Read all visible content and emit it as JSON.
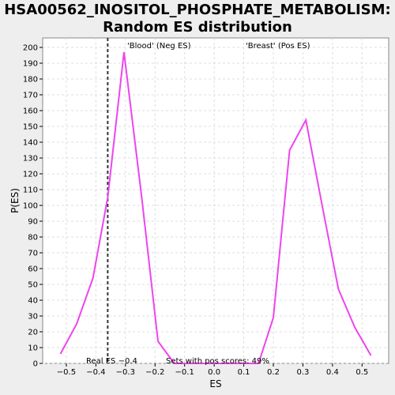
{
  "chart_data": {
    "type": "line",
    "title_line1": "HSA00562_INOSITOL_PHOSPHATE_METABOLISM:",
    "title_line2": "Random ES distribution",
    "xlabel": "ES",
    "ylabel": "P(ES)",
    "xlim": [
      -0.58,
      0.59
    ],
    "ylim": [
      0,
      206
    ],
    "xticks": [
      -0.5,
      -0.4,
      -0.3,
      -0.2,
      -0.1,
      0.0,
      0.1,
      0.2,
      0.3,
      0.4,
      0.5
    ],
    "xtick_labels": [
      "−0.5",
      "−0.4",
      "−0.3",
      "−0.2",
      "−0.1",
      "0.0",
      "0.1",
      "0.2",
      "0.3",
      "0.4",
      "0.5"
    ],
    "yticks": [
      0,
      10,
      20,
      30,
      40,
      50,
      60,
      70,
      80,
      90,
      100,
      110,
      120,
      130,
      140,
      150,
      160,
      170,
      180,
      190,
      200
    ],
    "grid": true,
    "line_color": "#ee44ee",
    "series": [
      {
        "x": [
          -0.52,
          -0.465,
          -0.41,
          -0.36,
          -0.305,
          -0.245,
          -0.19,
          -0.135,
          0.0,
          0.15,
          0.2,
          0.255,
          0.31,
          0.365,
          0.42,
          0.475,
          0.53
        ],
        "y": [
          6,
          25,
          54,
          105,
          197,
          105,
          14,
          0,
          0,
          0,
          29,
          135,
          154,
          100,
          47,
          23,
          5
        ]
      }
    ],
    "real_es": -0.36,
    "real_es_label": "Real ES −0.4",
    "neg_label": "'Blood' (Neg ES)",
    "neg_label_color": "#4444cc",
    "pos_label": "'Breast' (Pos ES)",
    "pos_label_color": "#dd4444",
    "pos_score_text": "Sets with pos scores: 49%"
  }
}
